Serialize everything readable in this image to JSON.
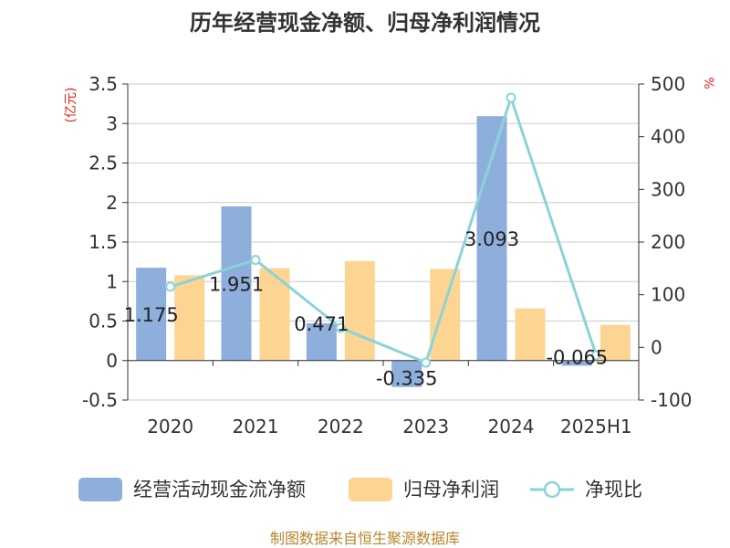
{
  "chart_data": {
    "type": "bar",
    "title": "历年经营现金净额、归母净利润情况",
    "categories": [
      "2020",
      "2021",
      "2022",
      "2023",
      "2024",
      "2025H1"
    ],
    "series": [
      {
        "name": "经营活动现金流净额",
        "kind": "bar",
        "axis": "left",
        "color": "#8eaedb",
        "values": [
          1.175,
          1.951,
          0.471,
          -0.335,
          3.093,
          -0.065
        ],
        "labels": [
          "1.175",
          "1.951",
          "0.471",
          "-0.335",
          "3.093",
          "-0.065"
        ]
      },
      {
        "name": "归母净利润",
        "kind": "bar",
        "axis": "left",
        "color": "#fdd593",
        "values": [
          1.08,
          1.17,
          1.26,
          1.16,
          0.66,
          0.45
        ]
      },
      {
        "name": "净现比",
        "kind": "line",
        "axis": "right",
        "color": "#8ad3d8",
        "values": [
          115,
          166,
          37,
          -29,
          474,
          -15
        ]
      }
    ],
    "left_axis": {
      "unit": "(亿元)",
      "ticks": [
        "3.5",
        "3",
        "2.5",
        "2",
        "1.5",
        "1",
        "0.5",
        "0",
        "-0.5"
      ],
      "min": -0.5,
      "max": 3.5
    },
    "right_axis": {
      "unit": "%",
      "ticks": [
        "500",
        "400",
        "300",
        "200",
        "100",
        "0",
        "-100"
      ],
      "min": -100,
      "max": 500
    },
    "grid": true,
    "legend_position": "bottom"
  },
  "source": "制图数据来自恒生聚源数据库"
}
